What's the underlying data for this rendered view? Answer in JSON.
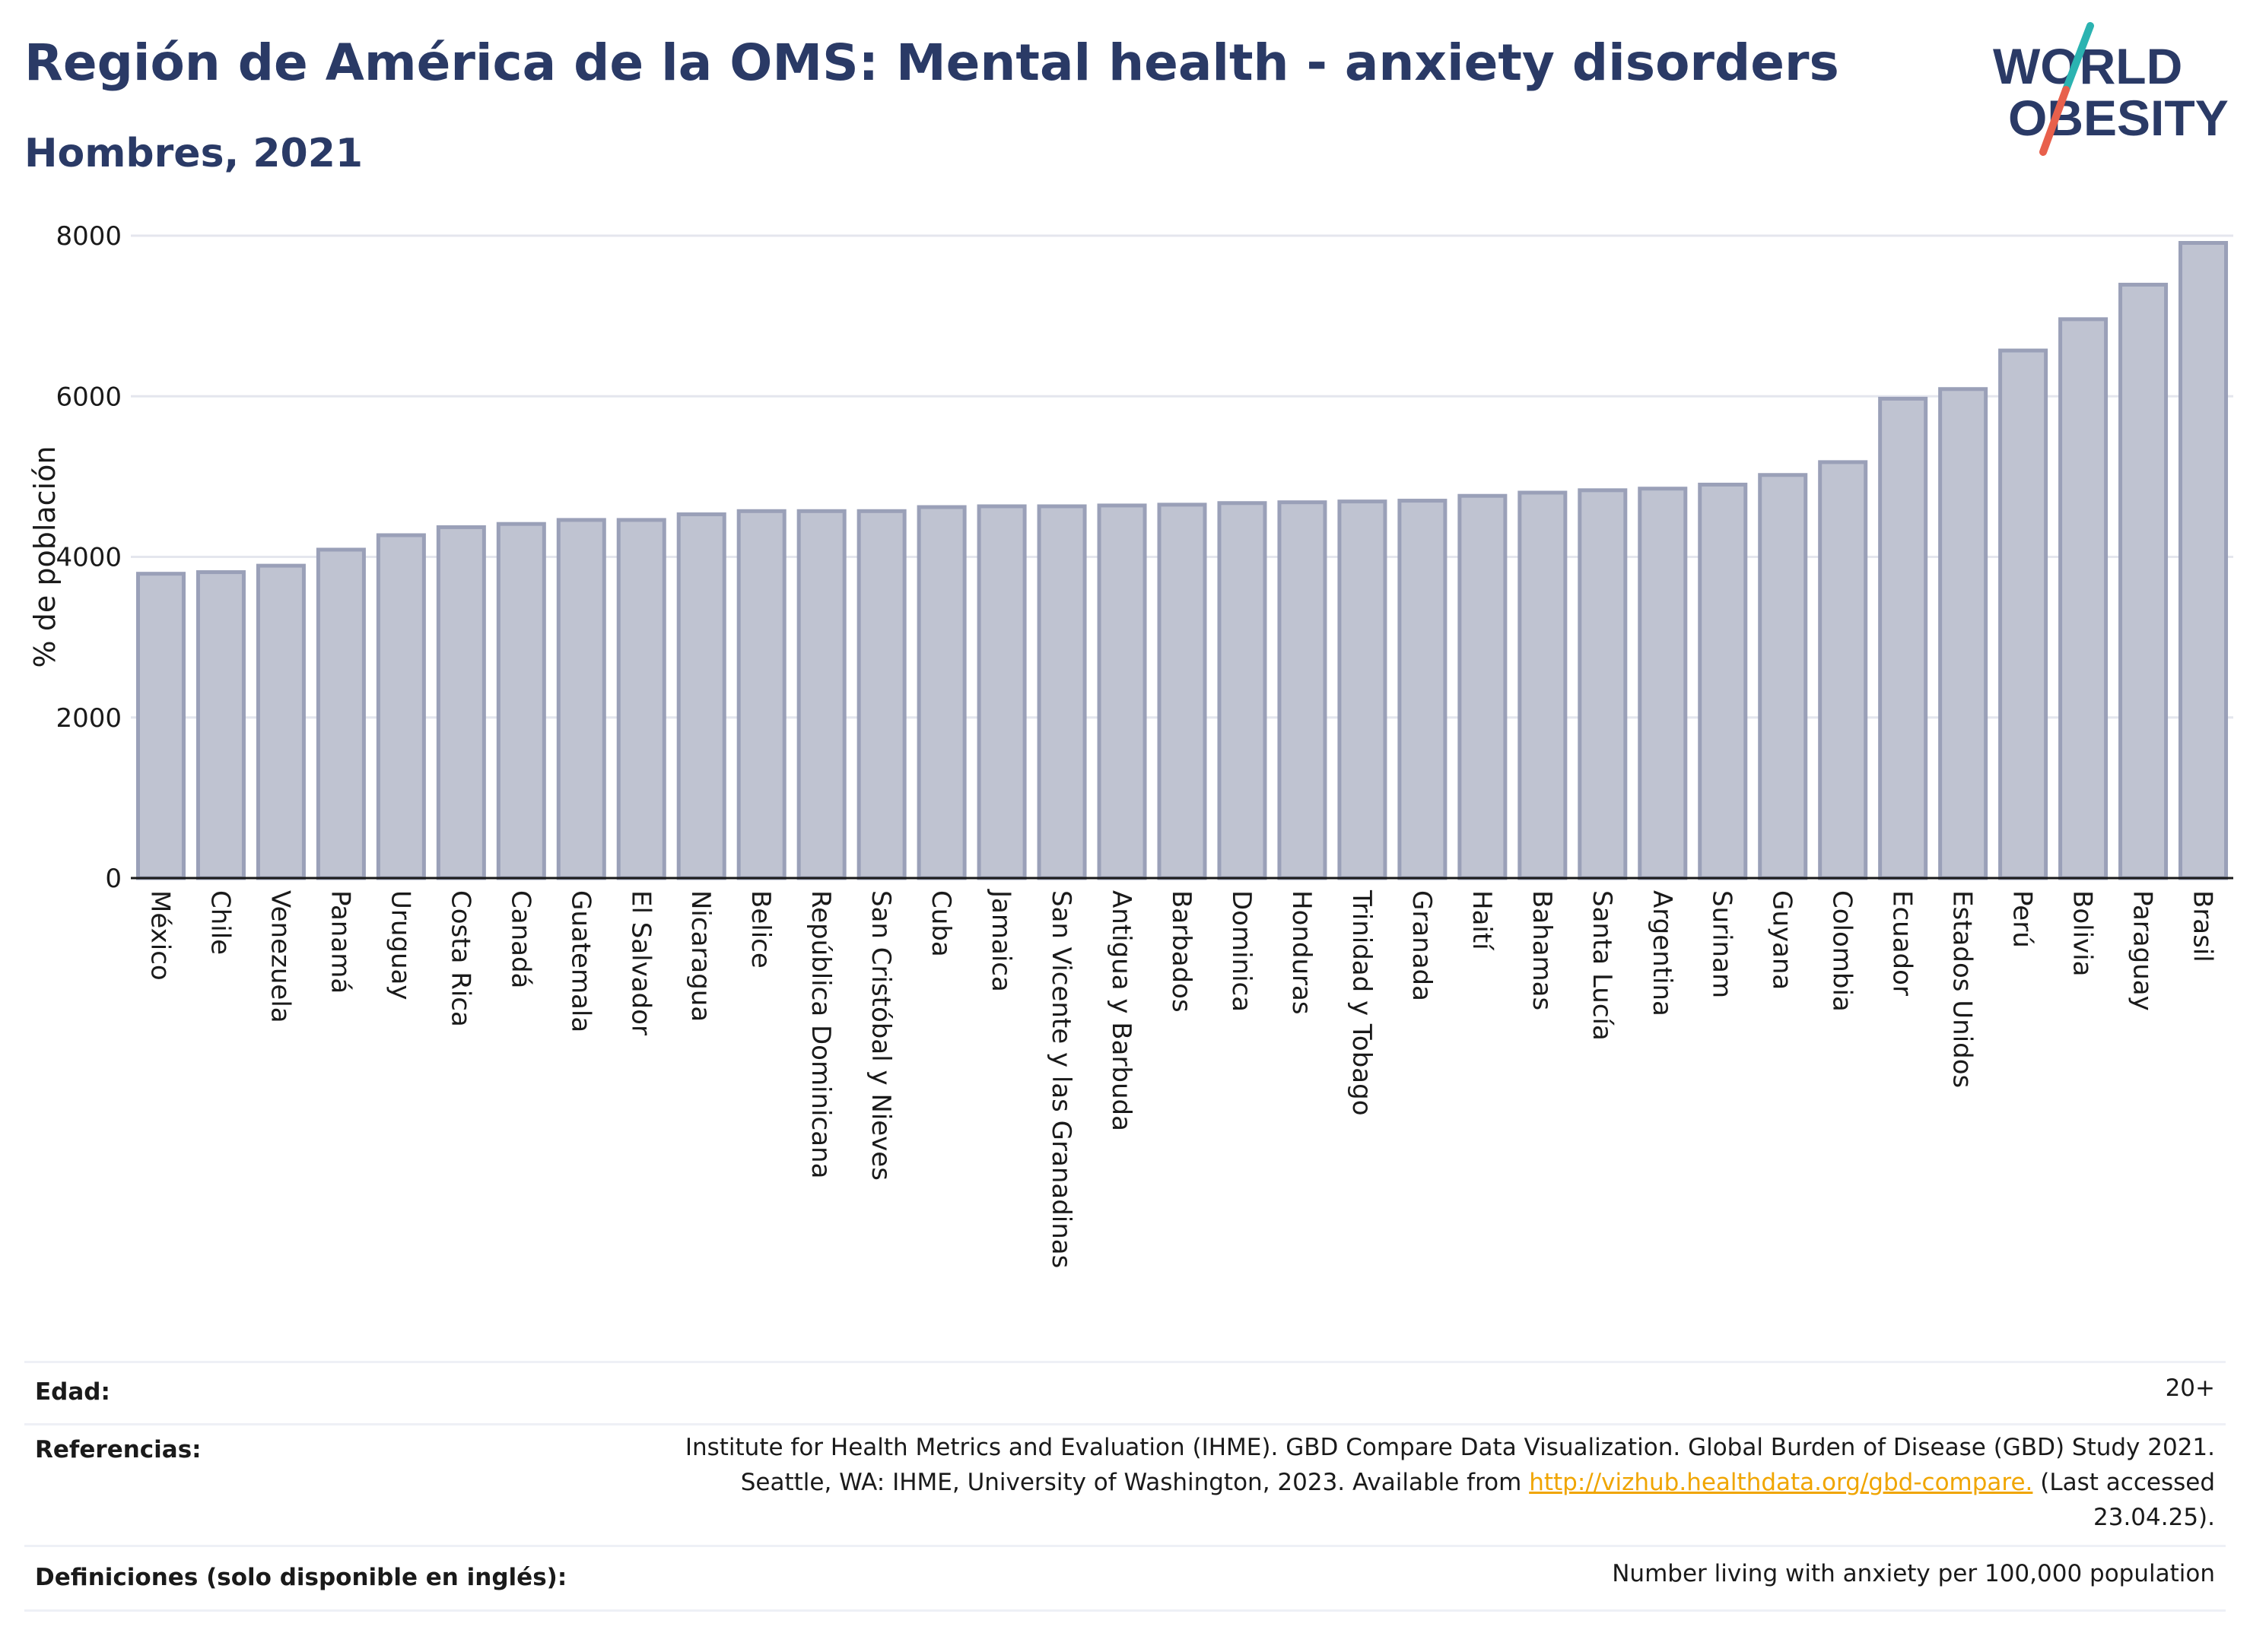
{
  "header": {
    "title": "Región de América de la OMS: Mental health - anxiety disorders",
    "subtitle": "Hombres, 2021"
  },
  "logo": {
    "line1": "WORLD",
    "line2": "OBESITY",
    "accent_teal": "#2bb3b1",
    "accent_red": "#e8604c",
    "text_color": "#2a3a66"
  },
  "chart_data": {
    "type": "bar",
    "ylabel": "% de población",
    "ylim": [
      0,
      8000
    ],
    "yticks": [
      0,
      2000,
      4000,
      6000,
      8000
    ],
    "grid": true,
    "bar_fill": "#bfc3d1",
    "bar_stroke": "#9aa0b8",
    "categories": [
      "México",
      "Chile",
      "Venezuela",
      "Panamá",
      "Uruguay",
      "Costa Rica",
      "Canadá",
      "Guatemala",
      "El Salvador",
      "Nicaragua",
      "Belice",
      "República Dominicana",
      "San Cristóbal y Nieves",
      "Cuba",
      "Jamaica",
      "San Vicente y las Granadinas",
      "Antigua y Barbuda",
      "Barbados",
      "Dominica",
      "Honduras",
      "Trinidad y Tobago",
      "Granada",
      "Haití",
      "Bahamas",
      "Santa Lucía",
      "Argentina",
      "Surinam",
      "Guyana",
      "Colombia",
      "Ecuador",
      "Estados Unidos",
      "Perú",
      "Bolivia",
      "Paraguay",
      "Brasil"
    ],
    "values": [
      3790,
      3810,
      3890,
      4090,
      4270,
      4370,
      4410,
      4460,
      4460,
      4530,
      4570,
      4570,
      4570,
      4620,
      4630,
      4630,
      4640,
      4650,
      4670,
      4680,
      4690,
      4700,
      4760,
      4800,
      4830,
      4850,
      4900,
      5020,
      5180,
      5970,
      6090,
      6570,
      6960,
      7390,
      7910
    ]
  },
  "footer": {
    "age_label": "Edad:",
    "age_value": "20+",
    "references_label": "Referencias:",
    "references_line1": "Institute for Health Metrics and Evaluation (IHME). GBD Compare Data Visualization. Global Burden of Disease (GBD) Study 2021.",
    "references_line2_pre": "Seattle, WA: IHME, University of Washington, 2023. Available from ",
    "references_link": "http://vizhub.healthdata.org/gbd-compare.",
    "references_line2_post": " (Last accessed",
    "references_line3": "23.04.25).",
    "definitions_label": "Definiciones (solo disponible en inglés):",
    "definitions_value": "Number living with anxiety per 100,000 population"
  }
}
